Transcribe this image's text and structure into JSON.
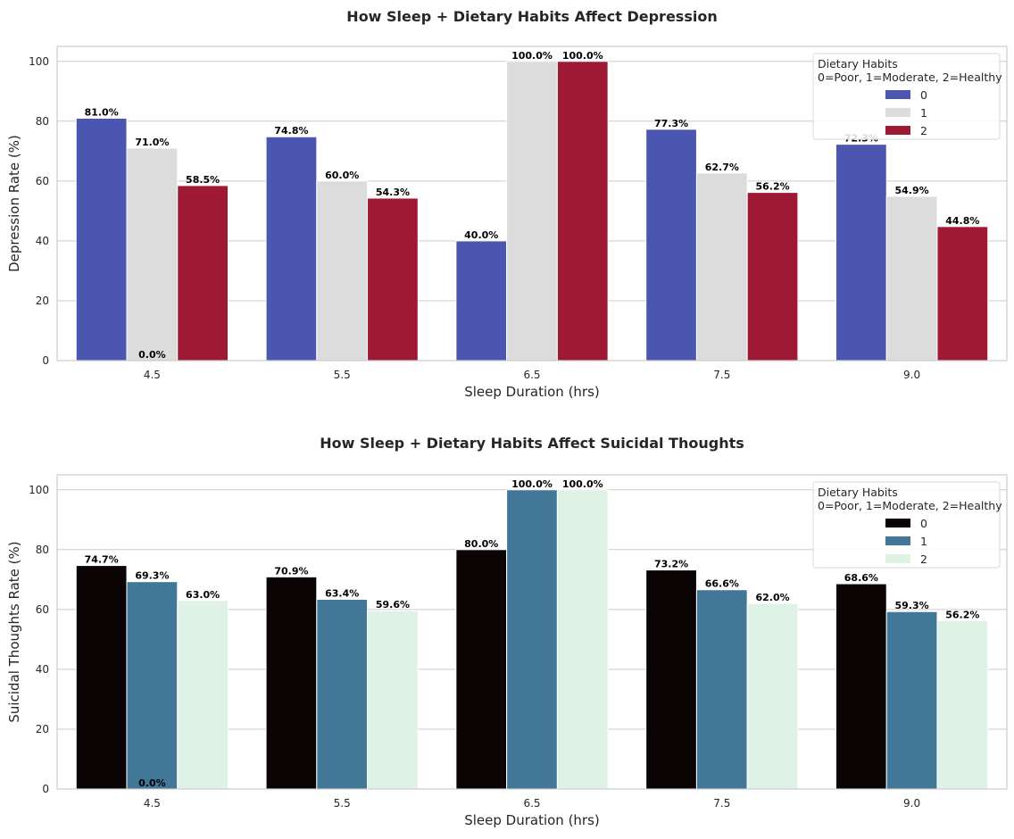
{
  "chart_data": [
    {
      "type": "bar",
      "title": "How Sleep + Dietary Habits Affect Depression",
      "xlabel": "Sleep Duration (hrs)",
      "ylabel": "Depression Rate (%)",
      "categories": [
        "4.5",
        "5.5",
        "6.5",
        "7.5",
        "9.0"
      ],
      "yticks": [
        0,
        20,
        40,
        60,
        80,
        100
      ],
      "ylim": [
        0,
        105
      ],
      "grid": true,
      "legend": {
        "title_line1": "Dietary Habits",
        "title_line2": "0=Poor, 1=Moderate, 2=Healthy",
        "position": "top-right"
      },
      "series": [
        {
          "name": "0",
          "color": "#4b56b1",
          "values": [
            81.0,
            74.8,
            40.0,
            77.3,
            72.3
          ],
          "labels": [
            "81.0%",
            "74.8%",
            "40.0%",
            "77.3%",
            "72.3%"
          ]
        },
        {
          "name": "1",
          "color": "#dcdcdc",
          "values": [
            71.0,
            60.0,
            100.0,
            62.7,
            54.9
          ],
          "labels": [
            "71.0%",
            "60.0%",
            "100.0%",
            "62.7%",
            "54.9%"
          ]
        },
        {
          "name": "2",
          "color": "#9e1a34",
          "values": [
            58.5,
            54.3,
            100.0,
            56.2,
            44.8
          ],
          "labels": [
            "58.5%",
            "54.3%",
            "100.0%",
            "56.2%",
            "44.8%"
          ]
        }
      ],
      "extra_labels": [
        {
          "category_index": 0,
          "value": 0.0,
          "label": "0.0%"
        }
      ]
    },
    {
      "type": "bar",
      "title": "How Sleep + Dietary Habits Affect Suicidal Thoughts",
      "xlabel": "Sleep Duration (hrs)",
      "ylabel": "Suicidal Thoughts Rate (%)",
      "categories": [
        "4.5",
        "5.5",
        "6.5",
        "7.5",
        "9.0"
      ],
      "yticks": [
        0,
        20,
        40,
        60,
        80,
        100
      ],
      "ylim": [
        0,
        105
      ],
      "grid": true,
      "legend": {
        "title_line1": "Dietary Habits",
        "title_line2": "0=Poor, 1=Moderate, 2=Healthy",
        "position": "top-right"
      },
      "series": [
        {
          "name": "0",
          "color": "#0a0405",
          "values": [
            74.7,
            70.9,
            80.0,
            73.2,
            68.6
          ],
          "labels": [
            "74.7%",
            "70.9%",
            "80.0%",
            "73.2%",
            "68.6%"
          ]
        },
        {
          "name": "1",
          "color": "#437797",
          "values": [
            69.3,
            63.4,
            100.0,
            66.6,
            59.3
          ],
          "labels": [
            "69.3%",
            "63.4%",
            "100.0%",
            "66.6%",
            "59.3%"
          ]
        },
        {
          "name": "2",
          "color": "#def3e6",
          "values": [
            63.0,
            59.6,
            100.0,
            62.0,
            56.2
          ],
          "labels": [
            "63.0%",
            "59.6%",
            "100.0%",
            "62.0%",
            "56.2%"
          ]
        }
      ],
      "extra_labels": [
        {
          "category_index": 0,
          "value": 0.0,
          "label": "0.0%"
        }
      ]
    }
  ]
}
